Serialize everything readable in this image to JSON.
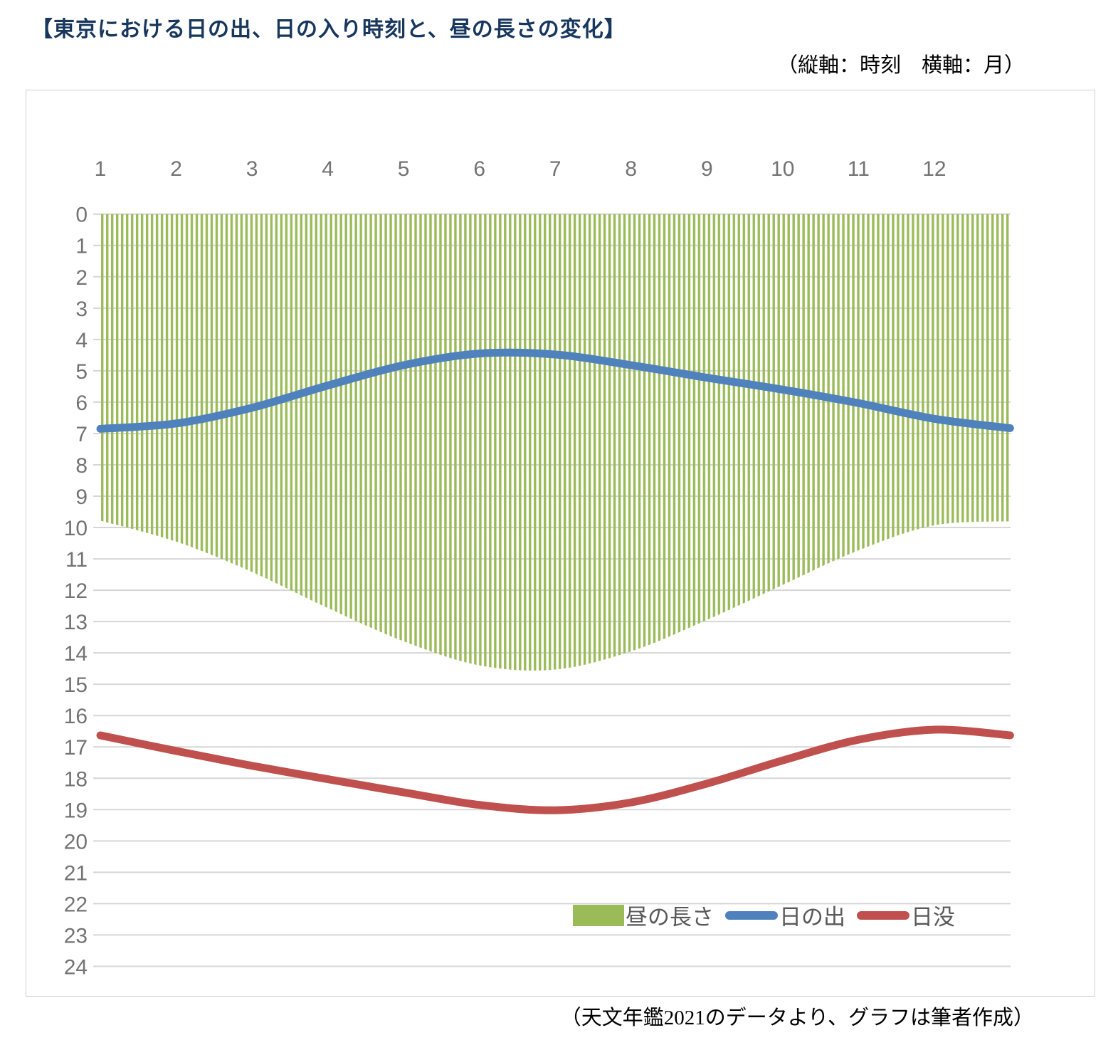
{
  "title": "【東京における日の出、日の入り時刻と、昼の長さの変化】",
  "axis_note": "（縦軸：時刻　横軸：月）",
  "caption": "（天文年鑑2021のデータより、グラフは筆者作成）",
  "chart_data": {
    "type": "area",
    "title": "東京における日の出、日の入り時刻と、昼の長さの変化",
    "xlabel": "月",
    "ylabel": "時刻",
    "y_axis_inverted": true,
    "ylim": [
      0,
      24
    ],
    "grid": "horizontal",
    "legend_position": "bottom-right-inside",
    "x_months": [
      1,
      2,
      3,
      4,
      5,
      6,
      7,
      8,
      9,
      10,
      11,
      12,
      13
    ],
    "x_tick_labels": [
      "1",
      "2",
      "3",
      "4",
      "5",
      "6",
      "7",
      "8",
      "9",
      "10",
      "11",
      "12"
    ],
    "y_tick_labels": [
      "0",
      "1",
      "2",
      "3",
      "4",
      "5",
      "6",
      "7",
      "8",
      "9",
      "10",
      "11",
      "12",
      "13",
      "14",
      "15",
      "16",
      "17",
      "18",
      "19",
      "20",
      "21",
      "22",
      "23",
      "24"
    ],
    "series": [
      {
        "name": "昼の長さ",
        "type": "area",
        "style": "vertical-hatch",
        "color": "#9BBB59",
        "values": [
          9.78,
          10.45,
          11.42,
          12.57,
          13.63,
          14.4,
          14.53,
          13.95,
          12.95,
          11.83,
          10.73,
          9.93,
          9.8
        ]
      },
      {
        "name": "日の出",
        "type": "line",
        "color": "#4F81BD",
        "values": [
          6.85,
          6.68,
          6.18,
          5.47,
          4.82,
          4.45,
          4.48,
          4.82,
          5.22,
          5.6,
          6.03,
          6.53,
          6.83
        ]
      },
      {
        "name": "日没",
        "type": "line",
        "color": "#C0504D",
        "values": [
          16.63,
          17.13,
          17.6,
          18.03,
          18.45,
          18.85,
          19.02,
          18.77,
          18.17,
          17.43,
          16.77,
          16.45,
          16.63
        ]
      }
    ],
    "colors": {
      "grid": "#D6D6D6",
      "tick_text": "#737373",
      "title_text": "#17375E"
    }
  }
}
